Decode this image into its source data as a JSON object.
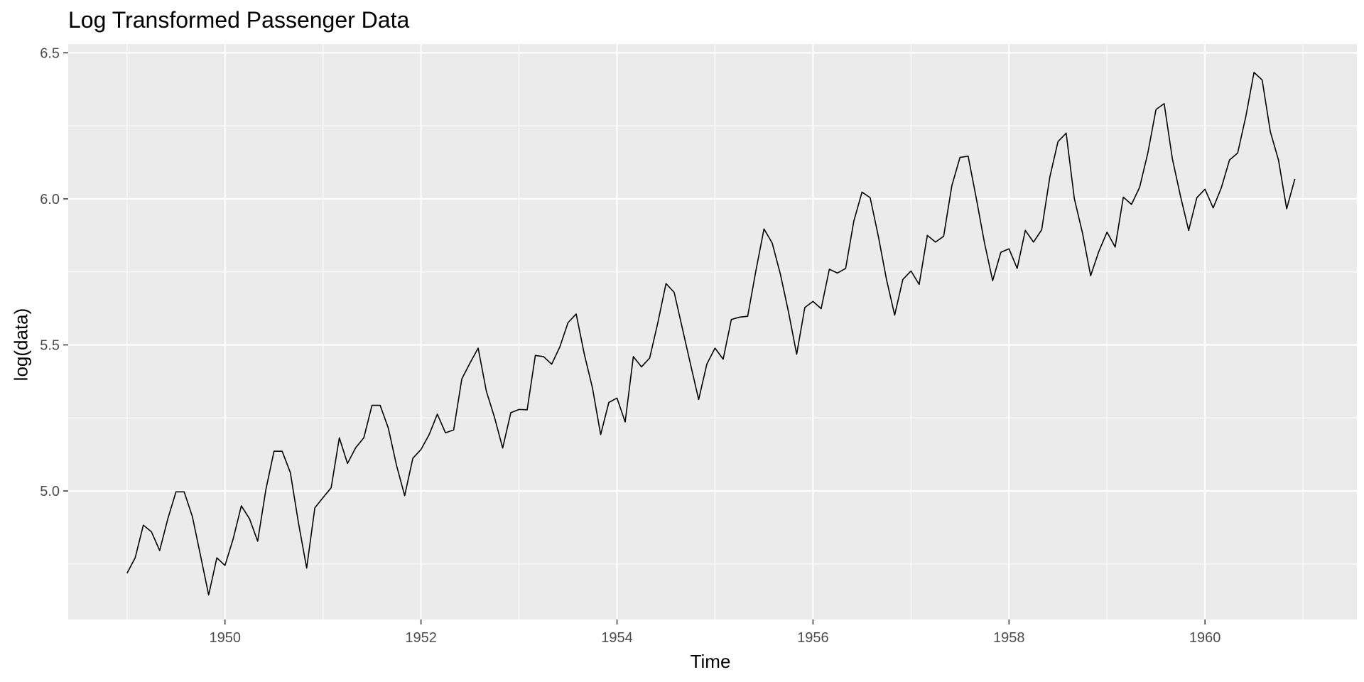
{
  "chart_data": {
    "type": "line",
    "title": "Log Transformed Passenger Data",
    "xlabel": "Time",
    "ylabel": "log(data)",
    "xlim": [
      1948.4,
      1961.55
    ],
    "ylim": [
      4.56,
      6.53
    ],
    "xticks": [
      1950,
      1952,
      1954,
      1956,
      1958,
      1960
    ],
    "xtick_labels": [
      "1950",
      "1952",
      "1954",
      "1956",
      "1958",
      "1960"
    ],
    "yticks": [
      5.0,
      5.5,
      6.0,
      6.5
    ],
    "ytick_labels": [
      "5.0",
      "5.5",
      "6.0",
      "6.5"
    ],
    "grid": true,
    "background": "#ebebeb",
    "line_color": "#000000",
    "x_start": 1949,
    "x_step": 0.0833333333,
    "series": [
      {
        "values": [
          4.718,
          4.771,
          4.883,
          4.86,
          4.796,
          4.905,
          4.997,
          4.997,
          4.913,
          4.779,
          4.644,
          4.771,
          4.745,
          4.836,
          4.949,
          4.905,
          4.828,
          5.004,
          5.136,
          5.136,
          5.063,
          4.89,
          4.736,
          4.942,
          4.977,
          5.011,
          5.182,
          5.094,
          5.148,
          5.182,
          5.293,
          5.293,
          5.215,
          5.088,
          4.984,
          5.112,
          5.142,
          5.193,
          5.263,
          5.199,
          5.209,
          5.384,
          5.438,
          5.489,
          5.342,
          5.252,
          5.147,
          5.268,
          5.279,
          5.278,
          5.464,
          5.46,
          5.434,
          5.493,
          5.576,
          5.606,
          5.468,
          5.352,
          5.193,
          5.303,
          5.318,
          5.236,
          5.46,
          5.425,
          5.455,
          5.576,
          5.71,
          5.68,
          5.557,
          5.434,
          5.313,
          5.434,
          5.489,
          5.451,
          5.587,
          5.595,
          5.598,
          5.753,
          5.897,
          5.849,
          5.743,
          5.613,
          5.468,
          5.628,
          5.649,
          5.624,
          5.759,
          5.746,
          5.762,
          5.924,
          6.023,
          6.004,
          5.872,
          5.724,
          5.602,
          5.724,
          5.753,
          5.707,
          5.875,
          5.852,
          5.872,
          6.045,
          6.142,
          6.146,
          6.001,
          5.849,
          5.72,
          5.817,
          5.829,
          5.762,
          5.892,
          5.852,
          5.894,
          6.075,
          6.196,
          6.225,
          6.001,
          5.883,
          5.737,
          5.82,
          5.886,
          5.835,
          6.006,
          5.981,
          6.04,
          6.157,
          6.306,
          6.326,
          6.138,
          6.009,
          5.892,
          6.004,
          6.033,
          5.969,
          6.038,
          6.133,
          6.157,
          6.282,
          6.433,
          6.407,
          6.23,
          6.133,
          5.966,
          6.068
        ]
      }
    ]
  }
}
